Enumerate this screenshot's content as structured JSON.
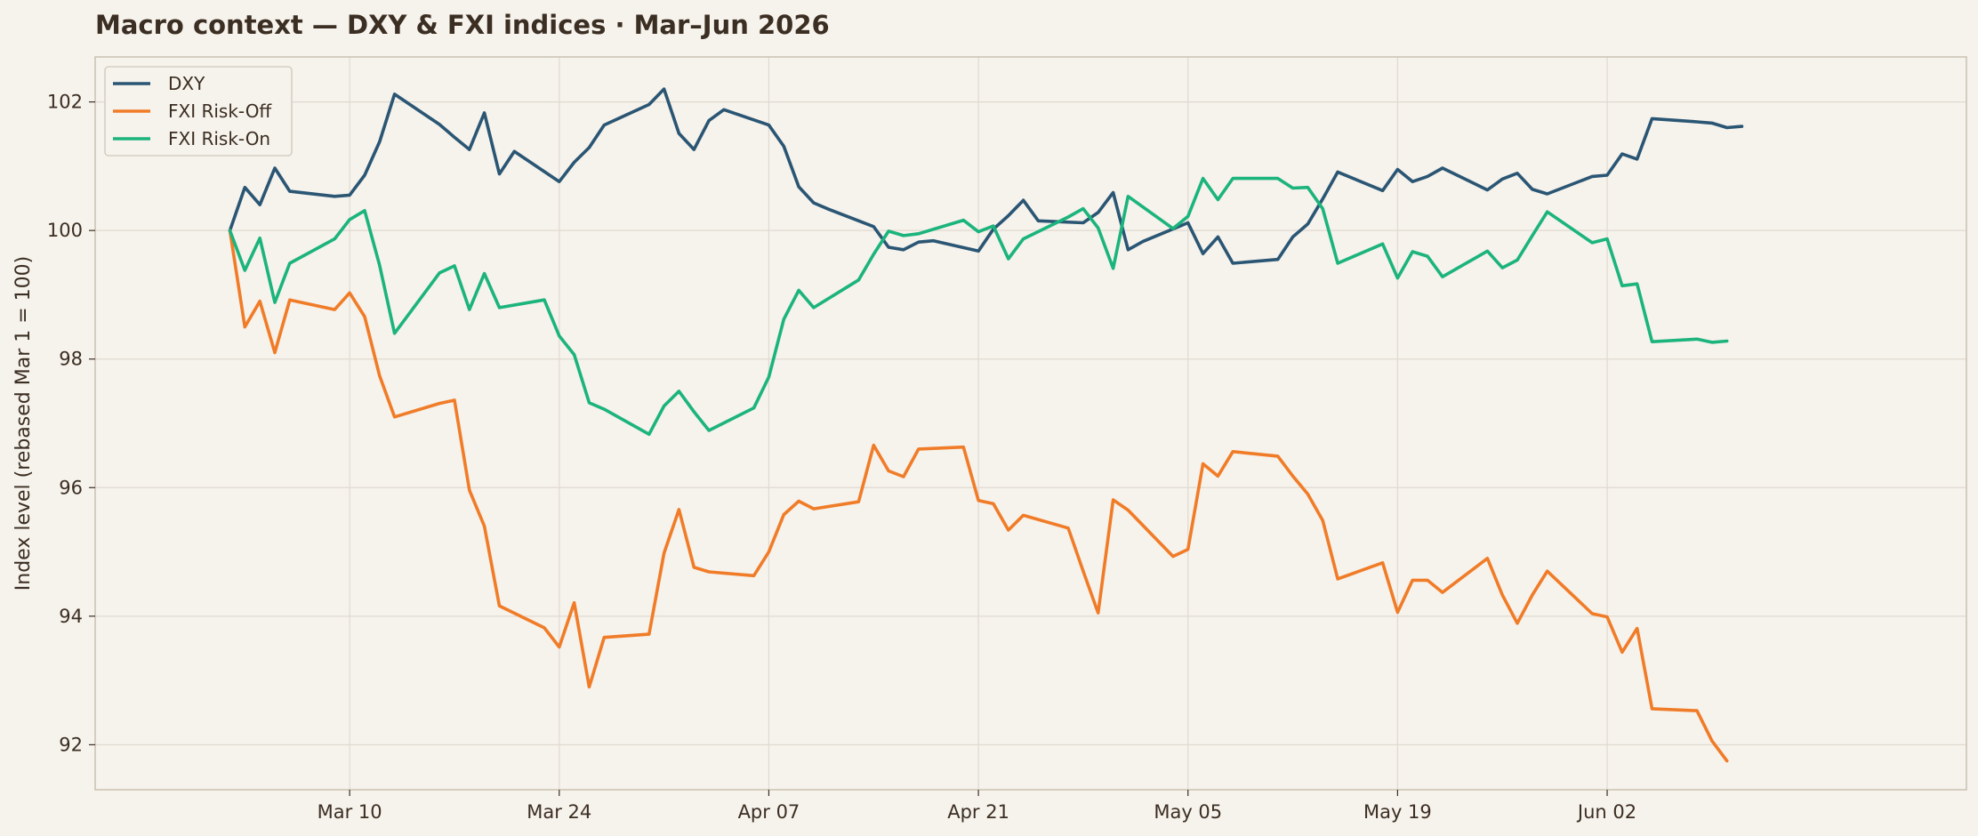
{
  "chart_data": {
    "type": "line",
    "title": "Macro context — DXY & FXI indices · Mar–Jun 2026",
    "xlabel": "",
    "ylabel": "Index level (rebased Mar 1 = 100)",
    "x_axis": "date",
    "xlim": [
      "2026-02-21",
      "2026-06-26"
    ],
    "ylim": [
      91.3,
      102.7
    ],
    "x_ticks": [
      {
        "date": "2026-03-10",
        "label": "Mar 10"
      },
      {
        "date": "2026-03-24",
        "label": "Mar 24"
      },
      {
        "date": "2026-04-07",
        "label": "Apr 07"
      },
      {
        "date": "2026-04-21",
        "label": "Apr 21"
      },
      {
        "date": "2026-05-05",
        "label": "May 05"
      },
      {
        "date": "2026-05-19",
        "label": "May 19"
      },
      {
        "date": "2026-06-02",
        "label": "Jun 02"
      }
    ],
    "y_ticks": [
      92,
      94,
      96,
      98,
      100,
      102
    ],
    "grid": true,
    "legend_position": "top-left",
    "series": [
      {
        "name": "DXY",
        "color": "#2a5674",
        "points": [
          [
            "2026-03-02",
            100.0
          ],
          [
            "2026-03-03",
            100.67
          ],
          [
            "2026-03-04",
            100.4
          ],
          [
            "2026-03-05",
            100.97
          ],
          [
            "2026-03-06",
            100.61
          ],
          [
            "2026-03-09",
            100.53
          ],
          [
            "2026-03-10",
            100.55
          ],
          [
            "2026-03-11",
            100.86
          ],
          [
            "2026-03-12",
            101.38
          ],
          [
            "2026-03-13",
            102.12
          ],
          [
            "2026-03-16",
            101.65
          ],
          [
            "2026-03-17",
            101.45
          ],
          [
            "2026-03-18",
            101.26
          ],
          [
            "2026-03-19",
            101.83
          ],
          [
            "2026-03-20",
            100.88
          ],
          [
            "2026-03-21",
            101.23
          ],
          [
            "2026-03-24",
            100.76
          ],
          [
            "2026-03-25",
            101.06
          ],
          [
            "2026-03-26",
            101.29
          ],
          [
            "2026-03-27",
            101.64
          ],
          [
            "2026-03-30",
            101.96
          ],
          [
            "2026-03-31",
            102.2
          ],
          [
            "2026-04-01",
            101.51
          ],
          [
            "2026-04-02",
            101.26
          ],
          [
            "2026-04-03",
            101.71
          ],
          [
            "2026-04-04",
            101.88
          ],
          [
            "2026-04-07",
            101.64
          ],
          [
            "2026-04-08",
            101.31
          ],
          [
            "2026-04-09",
            100.68
          ],
          [
            "2026-04-10",
            100.43
          ],
          [
            "2026-04-11",
            100.33
          ],
          [
            "2026-04-14",
            100.06
          ],
          [
            "2026-04-15",
            99.74
          ],
          [
            "2026-04-16",
            99.7
          ],
          [
            "2026-04-17",
            99.82
          ],
          [
            "2026-04-18",
            99.84
          ],
          [
            "2026-04-21",
            99.68
          ],
          [
            "2026-04-22",
            100.02
          ],
          [
            "2026-04-23",
            100.23
          ],
          [
            "2026-04-24",
            100.47
          ],
          [
            "2026-04-25",
            100.15
          ],
          [
            "2026-04-28",
            100.12
          ],
          [
            "2026-04-29",
            100.28
          ],
          [
            "2026-04-30",
            100.59
          ],
          [
            "2026-05-01",
            99.7
          ],
          [
            "2026-05-02",
            99.83
          ],
          [
            "2026-05-05",
            100.12
          ],
          [
            "2026-05-06",
            99.64
          ],
          [
            "2026-05-07",
            99.9
          ],
          [
            "2026-05-08",
            99.49
          ],
          [
            "2026-05-11",
            99.55
          ],
          [
            "2026-05-12",
            99.9
          ],
          [
            "2026-05-13",
            100.1
          ],
          [
            "2026-05-14",
            100.49
          ],
          [
            "2026-05-15",
            100.91
          ],
          [
            "2026-05-18",
            100.62
          ],
          [
            "2026-05-19",
            100.95
          ],
          [
            "2026-05-20",
            100.76
          ],
          [
            "2026-05-21",
            100.84
          ],
          [
            "2026-05-22",
            100.97
          ],
          [
            "2026-05-25",
            100.63
          ],
          [
            "2026-05-26",
            100.8
          ],
          [
            "2026-05-27",
            100.89
          ],
          [
            "2026-05-28",
            100.64
          ],
          [
            "2026-05-29",
            100.57
          ],
          [
            "2026-06-01",
            100.84
          ],
          [
            "2026-06-02",
            100.86
          ],
          [
            "2026-06-03",
            101.19
          ],
          [
            "2026-06-04",
            101.11
          ],
          [
            "2026-06-05",
            101.74
          ],
          [
            "2026-06-08",
            101.69
          ],
          [
            "2026-06-09",
            101.67
          ],
          [
            "2026-06-10",
            101.6
          ],
          [
            "2026-06-11",
            101.62
          ]
        ]
      },
      {
        "name": "FXI Risk-Off",
        "color": "#f07c28",
        "points": [
          [
            "2026-03-02",
            100.0
          ],
          [
            "2026-03-03",
            98.5
          ],
          [
            "2026-03-04",
            98.9
          ],
          [
            "2026-03-05",
            98.1
          ],
          [
            "2026-03-06",
            98.92
          ],
          [
            "2026-03-09",
            98.77
          ],
          [
            "2026-03-10",
            99.03
          ],
          [
            "2026-03-11",
            98.66
          ],
          [
            "2026-03-12",
            97.74
          ],
          [
            "2026-03-13",
            97.1
          ],
          [
            "2026-03-16",
            97.31
          ],
          [
            "2026-03-17",
            97.36
          ],
          [
            "2026-03-18",
            95.96
          ],
          [
            "2026-03-19",
            95.4
          ],
          [
            "2026-03-20",
            94.16
          ],
          [
            "2026-03-23",
            93.82
          ],
          [
            "2026-03-24",
            93.52
          ],
          [
            "2026-03-25",
            94.21
          ],
          [
            "2026-03-26",
            92.9
          ],
          [
            "2026-03-27",
            93.67
          ],
          [
            "2026-03-30",
            93.72
          ],
          [
            "2026-03-31",
            94.98
          ],
          [
            "2026-04-01",
            95.66
          ],
          [
            "2026-04-02",
            94.76
          ],
          [
            "2026-04-03",
            94.69
          ],
          [
            "2026-04-06",
            94.63
          ],
          [
            "2026-04-07",
            95.0
          ],
          [
            "2026-04-08",
            95.58
          ],
          [
            "2026-04-09",
            95.79
          ],
          [
            "2026-04-10",
            95.67
          ],
          [
            "2026-04-13",
            95.78
          ],
          [
            "2026-04-14",
            96.66
          ],
          [
            "2026-04-15",
            96.26
          ],
          [
            "2026-04-16",
            96.17
          ],
          [
            "2026-04-17",
            96.6
          ],
          [
            "2026-04-20",
            96.63
          ],
          [
            "2026-04-21",
            95.8
          ],
          [
            "2026-04-22",
            95.75
          ],
          [
            "2026-04-23",
            95.34
          ],
          [
            "2026-04-24",
            95.57
          ],
          [
            "2026-04-27",
            95.37
          ],
          [
            "2026-04-28",
            94.7
          ],
          [
            "2026-04-29",
            94.05
          ],
          [
            "2026-04-30",
            95.81
          ],
          [
            "2026-05-01",
            95.65
          ],
          [
            "2026-05-04",
            94.93
          ],
          [
            "2026-05-05",
            95.04
          ],
          [
            "2026-05-06",
            96.37
          ],
          [
            "2026-05-07",
            96.18
          ],
          [
            "2026-05-08",
            96.56
          ],
          [
            "2026-05-11",
            96.49
          ],
          [
            "2026-05-12",
            96.18
          ],
          [
            "2026-05-13",
            95.9
          ],
          [
            "2026-05-14",
            95.49
          ],
          [
            "2026-05-15",
            94.58
          ],
          [
            "2026-05-18",
            94.83
          ],
          [
            "2026-05-19",
            94.06
          ],
          [
            "2026-05-20",
            94.56
          ],
          [
            "2026-05-21",
            94.56
          ],
          [
            "2026-05-22",
            94.37
          ],
          [
            "2026-05-25",
            94.9
          ],
          [
            "2026-05-26",
            94.33
          ],
          [
            "2026-05-27",
            93.89
          ],
          [
            "2026-05-28",
            94.33
          ],
          [
            "2026-05-29",
            94.7
          ],
          [
            "2026-06-01",
            94.04
          ],
          [
            "2026-06-02",
            93.99
          ],
          [
            "2026-06-03",
            93.44
          ],
          [
            "2026-06-04",
            93.81
          ],
          [
            "2026-06-05",
            92.56
          ],
          [
            "2026-06-08",
            92.53
          ],
          [
            "2026-06-09",
            92.06
          ],
          [
            "2026-06-10",
            91.75
          ]
        ]
      },
      {
        "name": "FXI Risk-On",
        "color": "#1bb47c",
        "points": [
          [
            "2026-03-02",
            100.0
          ],
          [
            "2026-03-03",
            99.38
          ],
          [
            "2026-03-04",
            99.88
          ],
          [
            "2026-03-05",
            98.88
          ],
          [
            "2026-03-06",
            99.49
          ],
          [
            "2026-03-09",
            99.87
          ],
          [
            "2026-03-10",
            100.17
          ],
          [
            "2026-03-11",
            100.31
          ],
          [
            "2026-03-12",
            99.46
          ],
          [
            "2026-03-13",
            98.4
          ],
          [
            "2026-03-16",
            99.34
          ],
          [
            "2026-03-17",
            99.45
          ],
          [
            "2026-03-18",
            98.77
          ],
          [
            "2026-03-19",
            99.33
          ],
          [
            "2026-03-20",
            98.8
          ],
          [
            "2026-03-23",
            98.92
          ],
          [
            "2026-03-24",
            98.36
          ],
          [
            "2026-03-25",
            98.07
          ],
          [
            "2026-03-26",
            97.32
          ],
          [
            "2026-03-27",
            97.22
          ],
          [
            "2026-03-30",
            96.83
          ],
          [
            "2026-03-31",
            97.27
          ],
          [
            "2026-04-01",
            97.5
          ],
          [
            "2026-04-02",
            97.18
          ],
          [
            "2026-04-03",
            96.89
          ],
          [
            "2026-04-06",
            97.24
          ],
          [
            "2026-04-07",
            97.72
          ],
          [
            "2026-04-08",
            98.62
          ],
          [
            "2026-04-09",
            99.07
          ],
          [
            "2026-04-10",
            98.8
          ],
          [
            "2026-04-13",
            99.23
          ],
          [
            "2026-04-14",
            99.63
          ],
          [
            "2026-04-15",
            99.99
          ],
          [
            "2026-04-16",
            99.92
          ],
          [
            "2026-04-17",
            99.95
          ],
          [
            "2026-04-20",
            100.16
          ],
          [
            "2026-04-21",
            99.98
          ],
          [
            "2026-04-22",
            100.07
          ],
          [
            "2026-04-23",
            99.56
          ],
          [
            "2026-04-24",
            99.87
          ],
          [
            "2026-04-27",
            100.21
          ],
          [
            "2026-04-28",
            100.34
          ],
          [
            "2026-04-29",
            100.04
          ],
          [
            "2026-04-30",
            99.41
          ],
          [
            "2026-05-01",
            100.53
          ],
          [
            "2026-05-04",
            100.03
          ],
          [
            "2026-05-05",
            100.22
          ],
          [
            "2026-05-06",
            100.81
          ],
          [
            "2026-05-07",
            100.48
          ],
          [
            "2026-05-08",
            100.81
          ],
          [
            "2026-05-11",
            100.81
          ],
          [
            "2026-05-12",
            100.66
          ],
          [
            "2026-05-13",
            100.67
          ],
          [
            "2026-05-14",
            100.34
          ],
          [
            "2026-05-15",
            99.49
          ],
          [
            "2026-05-18",
            99.79
          ],
          [
            "2026-05-19",
            99.26
          ],
          [
            "2026-05-20",
            99.67
          ],
          [
            "2026-05-21",
            99.6
          ],
          [
            "2026-05-22",
            99.28
          ],
          [
            "2026-05-25",
            99.68
          ],
          [
            "2026-05-26",
            99.42
          ],
          [
            "2026-05-27",
            99.54
          ],
          [
            "2026-05-28",
            99.92
          ],
          [
            "2026-05-29",
            100.29
          ],
          [
            "2026-06-01",
            99.81
          ],
          [
            "2026-06-02",
            99.87
          ],
          [
            "2026-06-03",
            99.14
          ],
          [
            "2026-06-04",
            99.17
          ],
          [
            "2026-06-05",
            98.27
          ],
          [
            "2026-06-08",
            98.31
          ],
          [
            "2026-06-09",
            98.26
          ],
          [
            "2026-06-10",
            98.28
          ]
        ]
      }
    ]
  },
  "colors": {
    "background": "#f6f2ec",
    "plot_background": "#f6f2ec",
    "frame": "#c9c1b2",
    "grid": "#e0dad0",
    "text": "#3b2e22"
  }
}
